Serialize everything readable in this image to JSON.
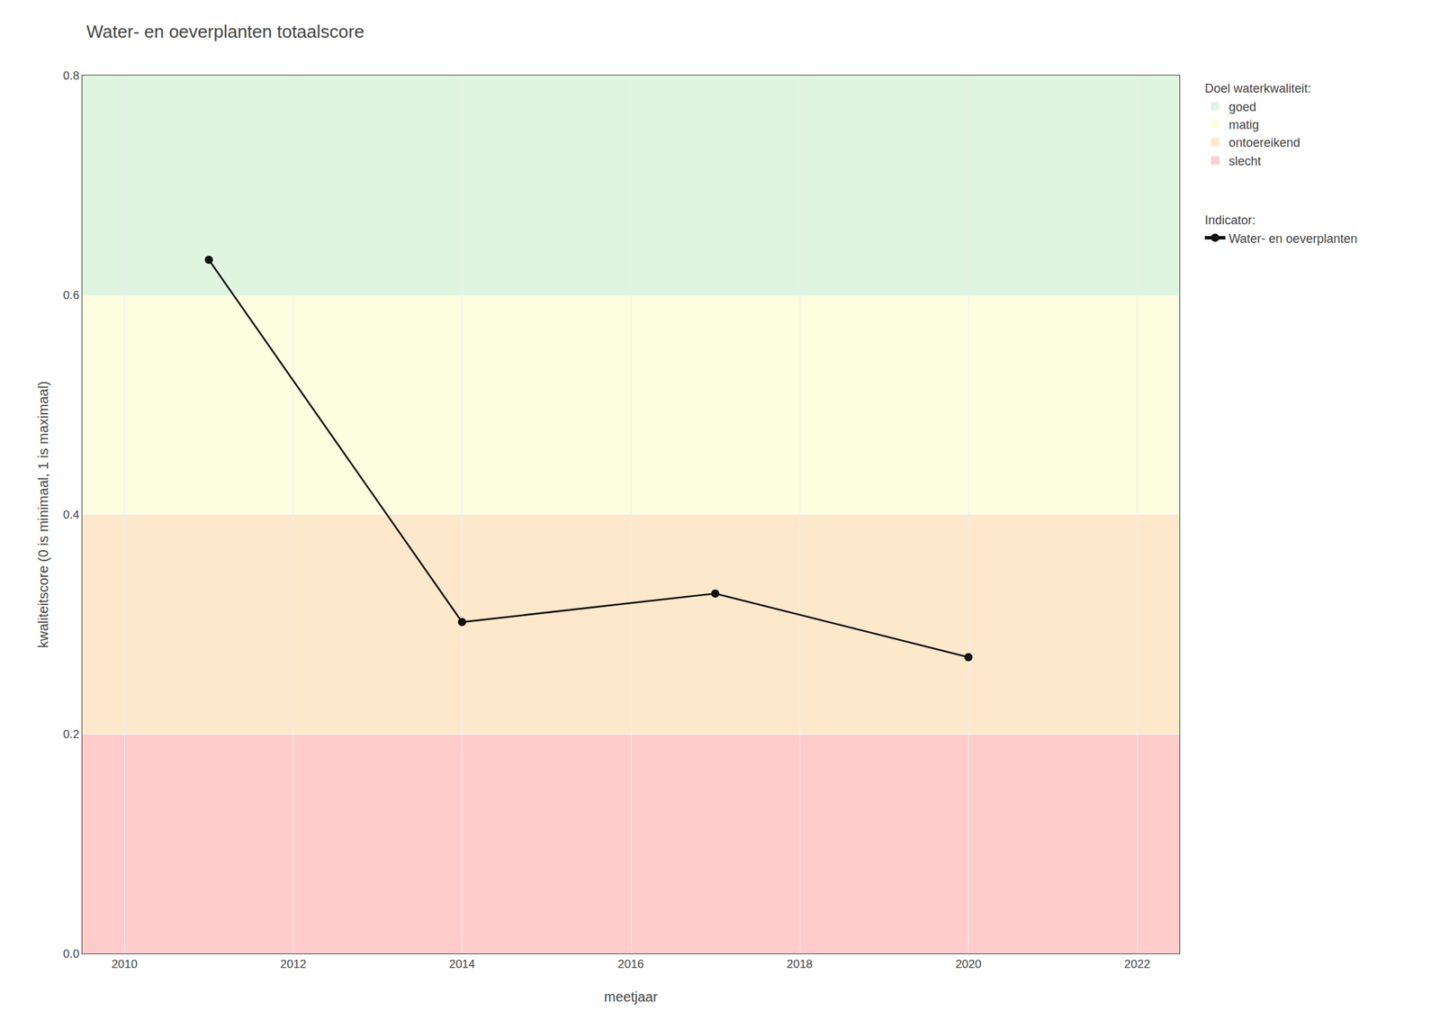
{
  "chart_data": {
    "type": "line",
    "title": "Water- en oeverplanten totaalscore",
    "x_label": "meetjaar",
    "y_label": "kwaliteitscore (0 is minimaal, 1 is maximaal)",
    "x": [
      2011,
      2014,
      2017,
      2020
    ],
    "series": [
      {
        "name": "Water- en oeverplanten",
        "color": "#111111",
        "marker": "circle",
        "group_title": "Indicator:",
        "values": [
          0.632,
          0.302,
          0.328,
          0.27
        ]
      }
    ],
    "xlim": [
      2009.5,
      2022.5
    ],
    "ylim": [
      0.0,
      0.8
    ],
    "xticks": [
      2010,
      2012,
      2014,
      2016,
      2018,
      2020,
      2022
    ],
    "yticks": [
      {
        "value": 0.0,
        "label": "0.0"
      },
      0.2,
      0.4,
      0.6,
      0.8
    ],
    "zones_title": "Doel waterkwaliteit:",
    "zones": [
      {
        "from": 0.0,
        "to": 0.2,
        "color": "#ffcccc",
        "label": "slecht"
      },
      {
        "from": 0.2,
        "to": 0.4,
        "color": "#fde8cc",
        "label": "ontoereikend"
      },
      {
        "from": 0.4,
        "to": 0.6,
        "color": "#fdfde0",
        "label": "matig"
      },
      {
        "from": 0.6,
        "to": 0.8,
        "color": "#e0f5e0",
        "label": "goed"
      }
    ],
    "grid": true,
    "legend": "right"
  }
}
